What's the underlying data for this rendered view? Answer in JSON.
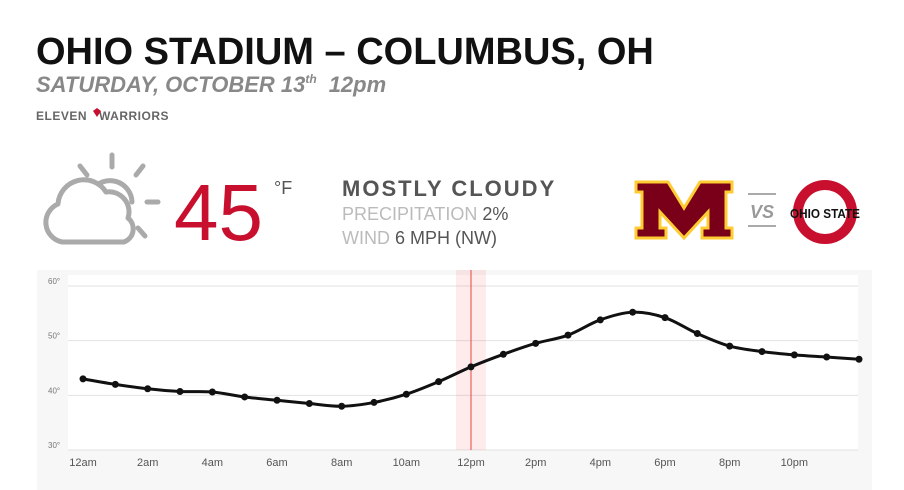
{
  "header": {
    "title": "OHIO STADIUM – COLUMBUS, OH",
    "date": "SATURDAY, OCTOBER 13",
    "date_suffix": "th",
    "time": "12pm",
    "brand_left": "ELEVEN",
    "brand_right": "WARRIORS"
  },
  "weather": {
    "temperature": "45",
    "unit": "°F",
    "condition": "MOSTLY CLOUDY",
    "precipitation_label": "PRECIPITATION",
    "precipitation_value": "2%",
    "wind_label": "WIND",
    "wind_value": "6 MPH (NW)"
  },
  "matchup": {
    "vs": "VS",
    "home_logo_text": "OHIO STATE"
  },
  "chart_data": {
    "type": "line",
    "categories": [
      "12am",
      null,
      "2am",
      null,
      "4am",
      null,
      "6am",
      null,
      "8am",
      null,
      "10am",
      null,
      "12pm",
      null,
      "2pm",
      null,
      "4pm",
      null,
      "6pm",
      null,
      "8pm",
      null,
      "10pm",
      null,
      null
    ],
    "series": [
      {
        "name": "Temperature",
        "color": "#111111",
        "values": [
          43,
          42,
          41.2,
          40.7,
          40.6,
          39.7,
          39.1,
          38.5,
          38,
          38.7,
          40.2,
          42.5,
          45.2,
          47.5,
          49.5,
          51,
          53.8,
          55.2,
          54.2,
          51.3,
          49,
          48,
          47.4,
          47,
          46.6
        ]
      }
    ],
    "ylim": [
      30,
      62
    ],
    "yticks": [
      {
        "value": 30,
        "label": "30°"
      },
      {
        "value": 40,
        "label": "40°"
      },
      {
        "value": 50,
        "label": "50°"
      },
      {
        "value": 60,
        "label": "60°"
      }
    ],
    "grid": true,
    "current_index": 12,
    "current_color": "#e8433f"
  }
}
